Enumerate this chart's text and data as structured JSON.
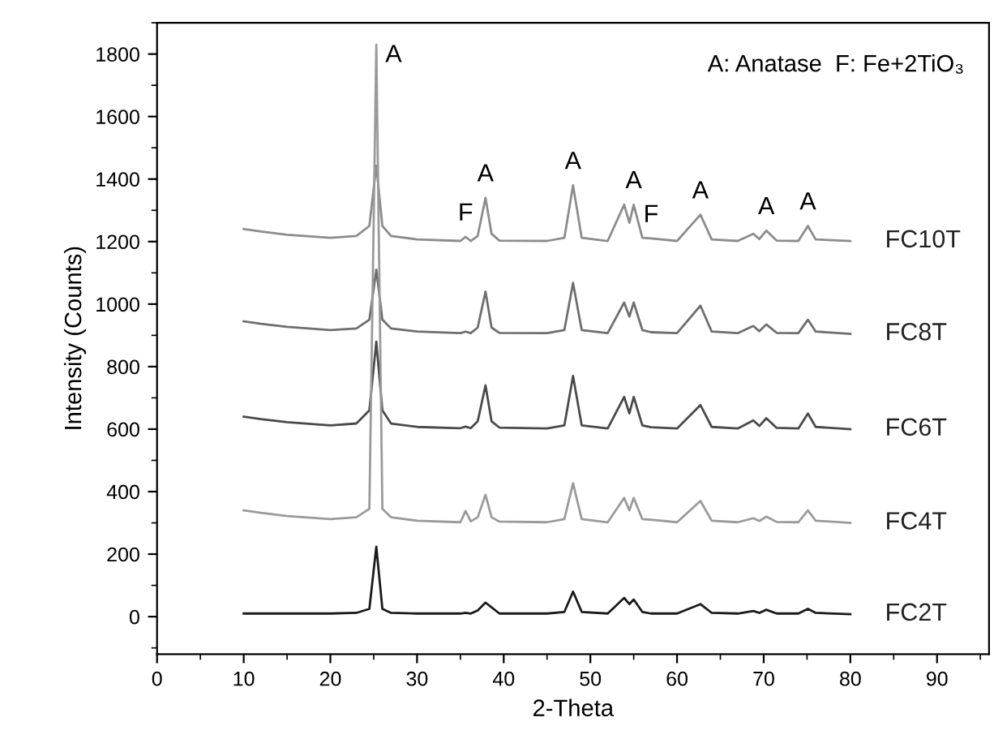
{
  "chart_data": {
    "type": "line",
    "xlabel": "2-Theta",
    "ylabel": "Intensity (Counts)",
    "x": [
      10,
      12,
      15,
      20,
      23,
      24.5,
      25.3,
      26,
      27,
      30,
      35,
      35.6,
      36.2,
      37,
      37.9,
      38.6,
      39.5,
      45,
      47,
      48,
      49,
      52,
      53.9,
      54.5,
      55,
      56,
      57,
      60,
      62.7,
      64,
      67,
      68.8,
      69.5,
      70.3,
      71.5,
      74,
      75.1,
      76,
      80
    ],
    "series": [
      {
        "name": "FC10T",
        "color": "#8c8c8c",
        "values": [
          1240,
          1232,
          1222,
          1212,
          1218,
          1250,
          1443,
          1250,
          1218,
          1207,
          1202,
          1215,
          1202,
          1218,
          1340,
          1225,
          1203,
          1202,
          1212,
          1380,
          1212,
          1202,
          1318,
          1260,
          1318,
          1212,
          1210,
          1202,
          1286,
          1207,
          1202,
          1225,
          1208,
          1235,
          1203,
          1202,
          1250,
          1207,
          1202
        ]
      },
      {
        "name": "FC8T",
        "color": "#6e6e6e",
        "values": [
          945,
          937,
          927,
          917,
          922,
          950,
          1110,
          950,
          922,
          912,
          907,
          912,
          907,
          925,
          1040,
          925,
          908,
          907,
          917,
          1068,
          917,
          907,
          1005,
          960,
          1005,
          917,
          910,
          907,
          995,
          912,
          907,
          930,
          913,
          935,
          908,
          907,
          950,
          912,
          905
        ]
      },
      {
        "name": "FC6T",
        "color": "#4a4a4a",
        "values": [
          640,
          632,
          622,
          612,
          618,
          660,
          880,
          660,
          618,
          607,
          603,
          608,
          603,
          625,
          740,
          625,
          605,
          602,
          612,
          770,
          612,
          602,
          703,
          650,
          703,
          612,
          606,
          602,
          677,
          607,
          602,
          628,
          610,
          635,
          604,
          602,
          650,
          607,
          600
        ]
      },
      {
        "name": "FC4T",
        "color": "#9a9a9a",
        "values": [
          340,
          332,
          322,
          312,
          318,
          345,
          1830,
          345,
          318,
          307,
          302,
          338,
          305,
          318,
          390,
          318,
          304,
          302,
          312,
          427,
          312,
          302,
          380,
          340,
          380,
          312,
          310,
          302,
          370,
          307,
          302,
          315,
          306,
          320,
          303,
          302,
          340,
          307,
          300
        ]
      },
      {
        "name": "FC2T",
        "color": "#1a1a1a",
        "values": [
          10,
          10,
          10,
          10,
          12,
          25,
          224,
          25,
          12,
          10,
          10,
          12,
          10,
          20,
          45,
          30,
          10,
          10,
          15,
          80,
          15,
          10,
          60,
          40,
          55,
          15,
          10,
          10,
          40,
          12,
          10,
          18,
          12,
          22,
          10,
          10,
          25,
          12,
          8
        ]
      }
    ],
    "annotations": [
      {
        "text": "A",
        "x": 25.3,
        "y": 1830
      },
      {
        "text": "F",
        "x": 35.6,
        "y": 1215
      },
      {
        "text": "A",
        "x": 37.9,
        "y": 1340
      },
      {
        "text": "A",
        "x": 48,
        "y": 1380
      },
      {
        "text": "A",
        "x": 55,
        "y": 1318
      },
      {
        "text": "F",
        "x": 57,
        "y": 1210
      },
      {
        "text": "A",
        "x": 62.7,
        "y": 1286
      },
      {
        "text": "A",
        "x": 70.3,
        "y": 1235
      },
      {
        "text": "A",
        "x": 75.1,
        "y": 1250
      },
      "A: Anatase  F: Fe+2TiO₃"
    ],
    "xlim": [
      0,
      96
    ],
    "ylim": [
      -120,
      1900
    ],
    "xticks": [
      0,
      10,
      20,
      30,
      40,
      50,
      60,
      70,
      80,
      90
    ],
    "yticks": [
      0,
      200,
      400,
      600,
      800,
      1000,
      1200,
      1400,
      1600,
      1800
    ],
    "grid": false,
    "legend": false,
    "marker": "none",
    "line_style": "solid"
  }
}
